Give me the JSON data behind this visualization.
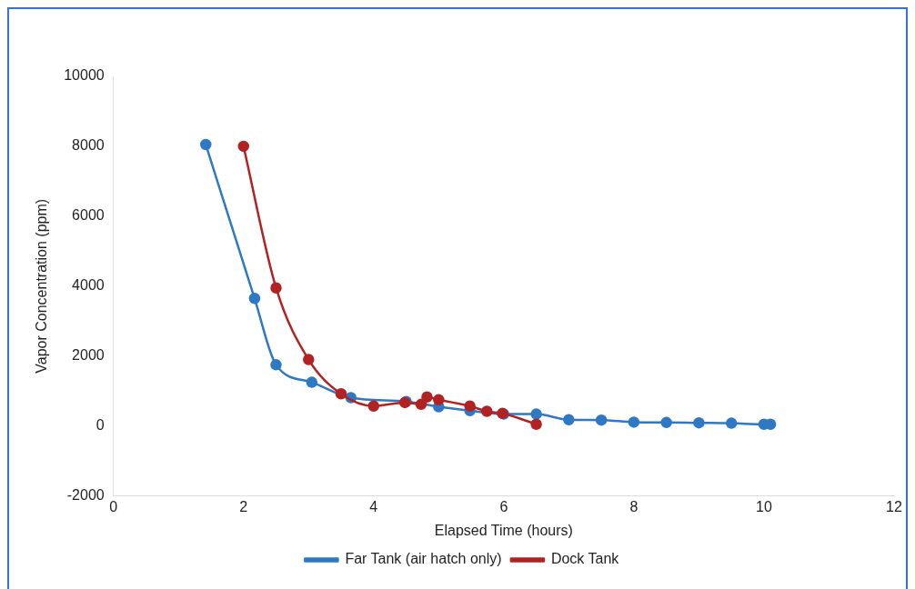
{
  "chart_data": {
    "type": "line",
    "xlabel": "Elapsed Time (hours)",
    "ylabel": "Vapor Concentration (ppm)",
    "xlim": [
      0,
      12
    ],
    "xticks": [
      0,
      2,
      4,
      6,
      8,
      10,
      12
    ],
    "ylim": [
      -2000,
      10000
    ],
    "yticks": [
      -2000,
      0,
      2000,
      4000,
      6000,
      8000,
      10000
    ],
    "grid": false,
    "legend": "bottom",
    "marker": "circle",
    "line_style": "solid",
    "series": [
      {
        "name": "Far Tank (air hatch only)",
        "color": "#2e78c4",
        "x": [
          1.42,
          2.17,
          2.5,
          3.05,
          3.65,
          4.5,
          5.0,
          5.48,
          6.0,
          6.5,
          7.0,
          7.5,
          8.0,
          8.5,
          9.0,
          9.5,
          10.0,
          10.1
        ],
        "values": [
          8050,
          3650,
          1750,
          1250,
          810,
          700,
          550,
          440,
          340,
          340,
          180,
          170,
          110,
          100,
          90,
          80,
          50,
          50
        ]
      },
      {
        "name": "Dock Tank",
        "color": "#b22222",
        "x": [
          2.0,
          2.5,
          3.0,
          3.5,
          4.0,
          4.48,
          4.73,
          4.82,
          5.0,
          5.48,
          5.74,
          5.98,
          6.5
        ],
        "values": [
          8000,
          3950,
          1900,
          920,
          570,
          670,
          620,
          830,
          750,
          570,
          420,
          360,
          50
        ]
      }
    ]
  }
}
